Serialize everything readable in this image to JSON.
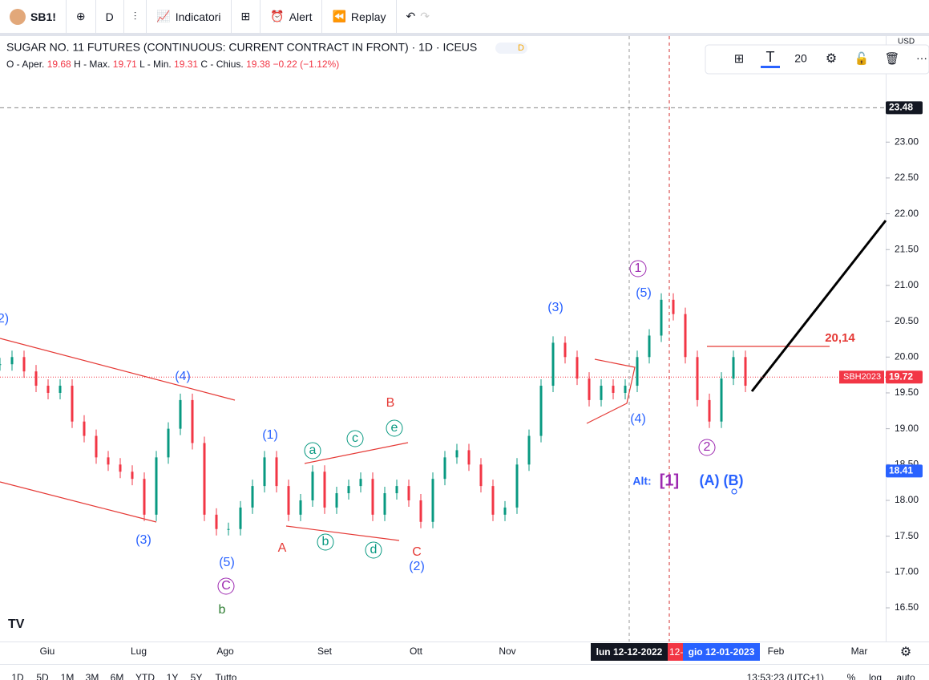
{
  "toolbar": {
    "symbol": "SB1!",
    "interval": "D",
    "indicators": "Indicatori",
    "alert": "Alert",
    "replay": "Replay"
  },
  "legend": {
    "title": "SUGAR NO. 11 FUTURES (CONTINUOUS: CURRENT CONTRACT IN FRONT) · 1D · ICEUS",
    "badge": "D",
    "open_label": "O - Aper.",
    "open": 19.68,
    "high_label": "H - Max.",
    "high": 19.71,
    "low_label": "L - Min.",
    "low": 19.31,
    "close_label": "C - Chius.",
    "close": 19.38,
    "change": "−0.22 (−1.12%)"
  },
  "drawing_toolbar": {
    "font_size": 20
  },
  "price_axis": {
    "currency": "USD",
    "ylim": [
      16.03,
      24.48
    ],
    "yticks": [
      {
        "value": 23,
        "label": "23.00"
      },
      {
        "value": 22.5,
        "label": "22.50"
      },
      {
        "value": 22,
        "label": "22.00"
      },
      {
        "value": 21.5,
        "label": "21.50"
      },
      {
        "value": 21,
        "label": "21.00"
      },
      {
        "value": 20.5,
        "label": "20.50"
      },
      {
        "value": 20,
        "label": "20.00"
      },
      {
        "value": 19.5,
        "label": "19.50"
      },
      {
        "value": 19,
        "label": "19.00"
      },
      {
        "value": 18.5,
        "label": "18.50"
      },
      {
        "value": 18,
        "label": "18.00"
      },
      {
        "value": 17.5,
        "label": "17.50"
      },
      {
        "value": 17,
        "label": "17.00"
      },
      {
        "value": 16.5,
        "label": "16.50"
      }
    ],
    "high_marker": 23.48,
    "last_price": 19.72,
    "last_symbol": "SBH2023",
    "crosshair_price": 18.41
  },
  "time_axis": {
    "labels": [
      "Giu",
      "Lug",
      "Ago",
      "Set",
      "Ott",
      "Nov",
      "Feb",
      "Mar"
    ],
    "crosshair_start": "lun 12-12-2022",
    "crosshair_mid": "12-",
    "crosshair_end": "gio 12-01-2023"
  },
  "price_series": {
    "closes": [
      19.9,
      20.0,
      19.8,
      19.6,
      19.5,
      19.6,
      19.1,
      18.9,
      18.6,
      18.5,
      18.4,
      18.3,
      17.8,
      18.6,
      19.0,
      19.4,
      18.8,
      17.8,
      17.6,
      17.6,
      17.9,
      18.2,
      18.6,
      18.2,
      17.8,
      18.0,
      18.4,
      17.9,
      18.1,
      18.2,
      18.3,
      17.8,
      18.1,
      18.2,
      18.0,
      17.7,
      18.3,
      18.6,
      18.7,
      18.5,
      18.2,
      17.8,
      17.9,
      18.5,
      18.9,
      19.6,
      20.2,
      20.0,
      19.7,
      19.4,
      19.6,
      19.5,
      19.6,
      20.0,
      20.3,
      20.8,
      20.6,
      20.0,
      19.4,
      19.1,
      19.7,
      20.0,
      19.6
    ]
  },
  "wave_labels": [
    "2)",
    "(4)",
    "(3)",
    "(5)",
    "C",
    "b",
    "(1)",
    "A",
    "a",
    "b",
    "c",
    "d",
    "e",
    "B",
    "C",
    "(2)",
    "(3)",
    "(5)",
    "1",
    "(4)",
    "2",
    "Alt:",
    "[1]",
    "(A) (B)",
    "20,14"
  ],
  "bottom_bar": {
    "ranges": [
      "1D",
      "5D",
      "1M",
      "3M",
      "6M",
      "YTD",
      "1Y",
      "5Y",
      "Tutto"
    ],
    "clock": "13:53:23 (UTC+1)",
    "percent": "%",
    "log": "log",
    "auto": "auto"
  }
}
